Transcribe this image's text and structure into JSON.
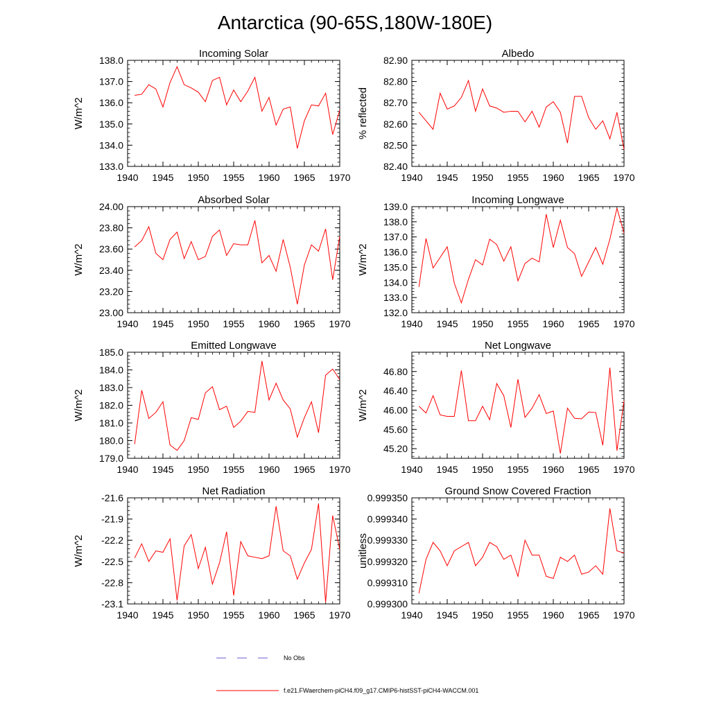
{
  "figure": {
    "title": "Antarctica (90-65S,180W-180E)",
    "line_color": "#ff0000",
    "obs_color": "#6a5acd",
    "legend": [
      {
        "label": "No Obs",
        "style": "dashed",
        "color": "#6a5acd"
      },
      {
        "label": "f.e21.FWaerchem-piCH4.f09_g17.CMIP6-histSST-piCH4-WACCM.001",
        "style": "solid",
        "color": "#ff0000"
      }
    ]
  },
  "chart_data": [
    {
      "type": "line",
      "title": "Incoming Solar",
      "ylabel": "W/m^2",
      "xlim": [
        1940,
        1970
      ],
      "ylim": [
        133.0,
        138.0
      ],
      "yticks": [
        133.0,
        134.0,
        135.0,
        136.0,
        137.0,
        138.0
      ],
      "ytick_labels": [
        "133.0",
        "134.0",
        "135.0",
        "136.0",
        "137.0",
        "138.0"
      ],
      "xticks": [
        1940,
        1945,
        1950,
        1955,
        1960,
        1965,
        1970
      ],
      "xtick_labels": [
        "1940",
        "1945",
        "1950",
        "1955",
        "1960",
        "1965",
        "1970"
      ],
      "x": [
        1941,
        1942,
        1943,
        1944,
        1945,
        1946,
        1947,
        1948,
        1949,
        1950,
        1951,
        1952,
        1953,
        1954,
        1955,
        1956,
        1957,
        1958,
        1959,
        1960,
        1961,
        1962,
        1963,
        1964,
        1965,
        1966,
        1967,
        1968,
        1969,
        1970
      ],
      "values": [
        136.35,
        136.4,
        136.85,
        136.65,
        135.8,
        136.95,
        137.7,
        136.85,
        136.7,
        136.5,
        136.05,
        137.05,
        137.2,
        135.9,
        136.6,
        136.05,
        136.55,
        137.2,
        135.6,
        136.25,
        134.95,
        135.7,
        135.8,
        133.85,
        135.15,
        135.9,
        135.85,
        136.45,
        134.5,
        135.65
      ]
    },
    {
      "type": "line",
      "title": "Albedo",
      "ylabel": "% reflected",
      "xlim": [
        1940,
        1970
      ],
      "ylim": [
        82.4,
        82.9
      ],
      "yticks": [
        82.4,
        82.5,
        82.6,
        82.7,
        82.8,
        82.9
      ],
      "ytick_labels": [
        "82.40",
        "82.50",
        "82.60",
        "82.70",
        "82.80",
        "82.90"
      ],
      "xticks": [
        1940,
        1945,
        1950,
        1955,
        1960,
        1965,
        1970
      ],
      "xtick_labels": [
        "1940",
        "1945",
        "1950",
        "1955",
        "1960",
        "1965",
        "1970"
      ],
      "x": [
        1941,
        1942,
        1943,
        1944,
        1945,
        1946,
        1947,
        1948,
        1949,
        1950,
        1951,
        1952,
        1953,
        1954,
        1955,
        1956,
        1957,
        1958,
        1959,
        1960,
        1961,
        1962,
        1963,
        1964,
        1965,
        1966,
        1967,
        1968,
        1969,
        1970
      ],
      "values": [
        82.655,
        82.615,
        82.575,
        82.745,
        82.67,
        82.685,
        82.725,
        82.805,
        82.66,
        82.765,
        82.685,
        82.675,
        82.655,
        82.66,
        82.66,
        82.61,
        82.66,
        82.585,
        82.68,
        82.705,
        82.655,
        82.51,
        82.73,
        82.73,
        82.63,
        82.575,
        82.615,
        82.53,
        82.655,
        82.48
      ]
    },
    {
      "type": "line",
      "title": "Absorbed Solar",
      "ylabel": "W/m^2",
      "xlim": [
        1940,
        1970
      ],
      "ylim": [
        23.0,
        24.0
      ],
      "yticks": [
        23.0,
        23.2,
        23.4,
        23.6,
        23.8,
        24.0
      ],
      "ytick_labels": [
        "23.00",
        "23.20",
        "23.40",
        "23.60",
        "23.80",
        "24.00"
      ],
      "xticks": [
        1940,
        1945,
        1950,
        1955,
        1960,
        1965,
        1970
      ],
      "xtick_labels": [
        "1940",
        "1945",
        "1950",
        "1955",
        "1960",
        "1965",
        "1970"
      ],
      "x": [
        1941,
        1942,
        1943,
        1944,
        1945,
        1946,
        1947,
        1948,
        1949,
        1950,
        1951,
        1952,
        1953,
        1954,
        1955,
        1956,
        1957,
        1958,
        1959,
        1960,
        1961,
        1962,
        1963,
        1964,
        1965,
        1966,
        1967,
        1968,
        1969,
        1970
      ],
      "values": [
        23.62,
        23.68,
        23.81,
        23.56,
        23.5,
        23.69,
        23.76,
        23.51,
        23.67,
        23.5,
        23.53,
        23.72,
        23.78,
        23.54,
        23.65,
        23.64,
        23.64,
        23.87,
        23.47,
        23.54,
        23.39,
        23.69,
        23.43,
        23.08,
        23.45,
        23.64,
        23.58,
        23.79,
        23.31,
        23.72
      ]
    },
    {
      "type": "line",
      "title": "Incoming Longwave",
      "ylabel": "W/m^2",
      "xlim": [
        1940,
        1970
      ],
      "ylim": [
        132.0,
        139.0
      ],
      "yticks": [
        132.0,
        133.0,
        134.0,
        135.0,
        136.0,
        137.0,
        138.0,
        139.0
      ],
      "ytick_labels": [
        "132.0",
        "133.0",
        "134.0",
        "135.0",
        "136.0",
        "137.0",
        "138.0",
        "139.0"
      ],
      "xticks": [
        1940,
        1945,
        1950,
        1955,
        1960,
        1965,
        1970
      ],
      "xtick_labels": [
        "1940",
        "1945",
        "1950",
        "1955",
        "1960",
        "1965",
        "1970"
      ],
      "x": [
        1941,
        1942,
        1943,
        1944,
        1945,
        1946,
        1947,
        1948,
        1949,
        1950,
        1951,
        1952,
        1953,
        1954,
        1955,
        1956,
        1957,
        1958,
        1959,
        1960,
        1961,
        1962,
        1963,
        1964,
        1965,
        1966,
        1967,
        1968,
        1969,
        1970
      ],
      "values": [
        133.7,
        136.9,
        134.95,
        135.65,
        136.35,
        133.95,
        132.65,
        134.2,
        135.5,
        135.15,
        136.85,
        136.5,
        135.4,
        136.35,
        134.1,
        135.25,
        135.6,
        135.35,
        138.5,
        136.3,
        138.1,
        136.3,
        135.9,
        134.4,
        135.35,
        136.3,
        135.2,
        136.85,
        138.9,
        137.25
      ]
    },
    {
      "type": "line",
      "title": "Emitted Longwave",
      "ylabel": "W/m^2",
      "xlim": [
        1940,
        1970
      ],
      "ylim": [
        179.0,
        185.0
      ],
      "yticks": [
        179.0,
        180.0,
        181.0,
        182.0,
        183.0,
        184.0,
        185.0
      ],
      "ytick_labels": [
        "179.0",
        "180.0",
        "181.0",
        "182.0",
        "183.0",
        "184.0",
        "185.0"
      ],
      "xticks": [
        1940,
        1945,
        1950,
        1955,
        1960,
        1965,
        1970
      ],
      "xtick_labels": [
        "1940",
        "1945",
        "1950",
        "1955",
        "1960",
        "1965",
        "1970"
      ],
      "x": [
        1941,
        1942,
        1943,
        1944,
        1945,
        1946,
        1947,
        1948,
        1949,
        1950,
        1951,
        1952,
        1953,
        1954,
        1955,
        1956,
        1957,
        1958,
        1959,
        1960,
        1961,
        1962,
        1963,
        1964,
        1965,
        1966,
        1967,
        1968,
        1969,
        1970
      ],
      "values": [
        179.8,
        182.85,
        181.25,
        181.6,
        182.2,
        179.75,
        179.45,
        180.0,
        181.3,
        181.2,
        182.7,
        183.05,
        181.75,
        181.95,
        180.75,
        181.1,
        181.65,
        181.6,
        184.5,
        182.3,
        183.25,
        182.3,
        181.8,
        180.2,
        181.3,
        182.2,
        180.45,
        183.7,
        184.05,
        183.45
      ]
    },
    {
      "type": "line",
      "title": "Net Longwave",
      "ylabel": "W/m^2",
      "xlim": [
        1940,
        1970
      ],
      "ylim": [
        45.0,
        47.2
      ],
      "yticks": [
        45.2,
        45.6,
        46.0,
        46.4,
        46.8
      ],
      "ytick_labels": [
        "45.20",
        "45.60",
        "46.00",
        "46.40",
        "46.80"
      ],
      "xticks": [
        1940,
        1945,
        1950,
        1955,
        1960,
        1965,
        1970
      ],
      "xtick_labels": [
        "1940",
        "1945",
        "1950",
        "1955",
        "1960",
        "1965",
        "1970"
      ],
      "x": [
        1941,
        1942,
        1943,
        1944,
        1945,
        1946,
        1947,
        1948,
        1949,
        1950,
        1951,
        1952,
        1953,
        1954,
        1955,
        1956,
        1957,
        1958,
        1959,
        1960,
        1961,
        1962,
        1963,
        1964,
        1965,
        1966,
        1967,
        1968,
        1969,
        1970
      ],
      "values": [
        46.08,
        45.94,
        46.3,
        45.9,
        45.87,
        45.87,
        46.82,
        45.78,
        45.78,
        46.08,
        45.8,
        46.55,
        46.3,
        45.64,
        46.64,
        45.85,
        46.04,
        46.32,
        45.93,
        45.98,
        45.1,
        46.04,
        45.83,
        45.82,
        45.96,
        45.95,
        45.27,
        46.88,
        45.16,
        46.19
      ]
    },
    {
      "type": "line",
      "title": "Net Radiation",
      "ylabel": "W/m^2",
      "xlim": [
        1940,
        1970
      ],
      "ylim": [
        -23.1,
        -21.6
      ],
      "yticks": [
        -23.1,
        -22.8,
        -22.5,
        -22.2,
        -21.9,
        -21.6
      ],
      "ytick_labels": [
        "-23.1",
        "-22.8",
        "-22.5",
        "-22.2",
        "-21.9",
        "-21.6"
      ],
      "xticks": [
        1940,
        1945,
        1950,
        1955,
        1960,
        1965,
        1970
      ],
      "xtick_labels": [
        "1940",
        "1945",
        "1950",
        "1955",
        "1960",
        "1965",
        "1970"
      ],
      "x": [
        1941,
        1942,
        1943,
        1944,
        1945,
        1946,
        1947,
        1948,
        1949,
        1950,
        1951,
        1952,
        1953,
        1954,
        1955,
        1956,
        1957,
        1958,
        1959,
        1960,
        1961,
        1962,
        1963,
        1964,
        1965,
        1966,
        1967,
        1968,
        1969,
        1970
      ],
      "values": [
        -22.45,
        -22.25,
        -22.5,
        -22.35,
        -22.37,
        -22.18,
        -23.05,
        -22.28,
        -22.12,
        -22.6,
        -22.3,
        -22.82,
        -22.52,
        -22.08,
        -22.98,
        -22.22,
        -22.42,
        -22.44,
        -22.46,
        -22.42,
        -21.72,
        -22.35,
        -22.42,
        -22.75,
        -22.52,
        -22.33,
        -21.68,
        -23.08,
        -21.85,
        -22.33
      ]
    },
    {
      "type": "line",
      "title": "Ground Snow Covered Fraction",
      "ylabel": "unitless",
      "xlim": [
        1940,
        1970
      ],
      "ylim": [
        0.9993,
        0.99935
      ],
      "yticks": [
        0.9993,
        0.99931,
        0.99932,
        0.99933,
        0.99934,
        0.99935
      ],
      "ytick_labels": [
        "0.999300",
        "0.999310",
        "0.999320",
        "0.999330",
        "0.999340",
        "0.999350"
      ],
      "xticks": [
        1940,
        1945,
        1950,
        1955,
        1960,
        1965,
        1970
      ],
      "xtick_labels": [
        "1940",
        "1945",
        "1950",
        "1955",
        "1960",
        "1965",
        "1970"
      ],
      "x": [
        1941,
        1942,
        1943,
        1944,
        1945,
        1946,
        1947,
        1948,
        1949,
        1950,
        1951,
        1952,
        1953,
        1954,
        1955,
        1956,
        1957,
        1958,
        1959,
        1960,
        1961,
        1962,
        1963,
        1964,
        1965,
        1966,
        1967,
        1968,
        1969,
        1970
      ],
      "values": [
        0.999305,
        0.999321,
        0.999329,
        0.999325,
        0.999318,
        0.999325,
        0.999327,
        0.999329,
        0.999318,
        0.999322,
        0.999329,
        0.999327,
        0.999321,
        0.999323,
        0.999313,
        0.99933,
        0.999323,
        0.999323,
        0.999313,
        0.999312,
        0.999322,
        0.99932,
        0.999323,
        0.999314,
        0.999315,
        0.999318,
        0.999314,
        0.999345,
        0.999325,
        0.999324
      ]
    }
  ]
}
